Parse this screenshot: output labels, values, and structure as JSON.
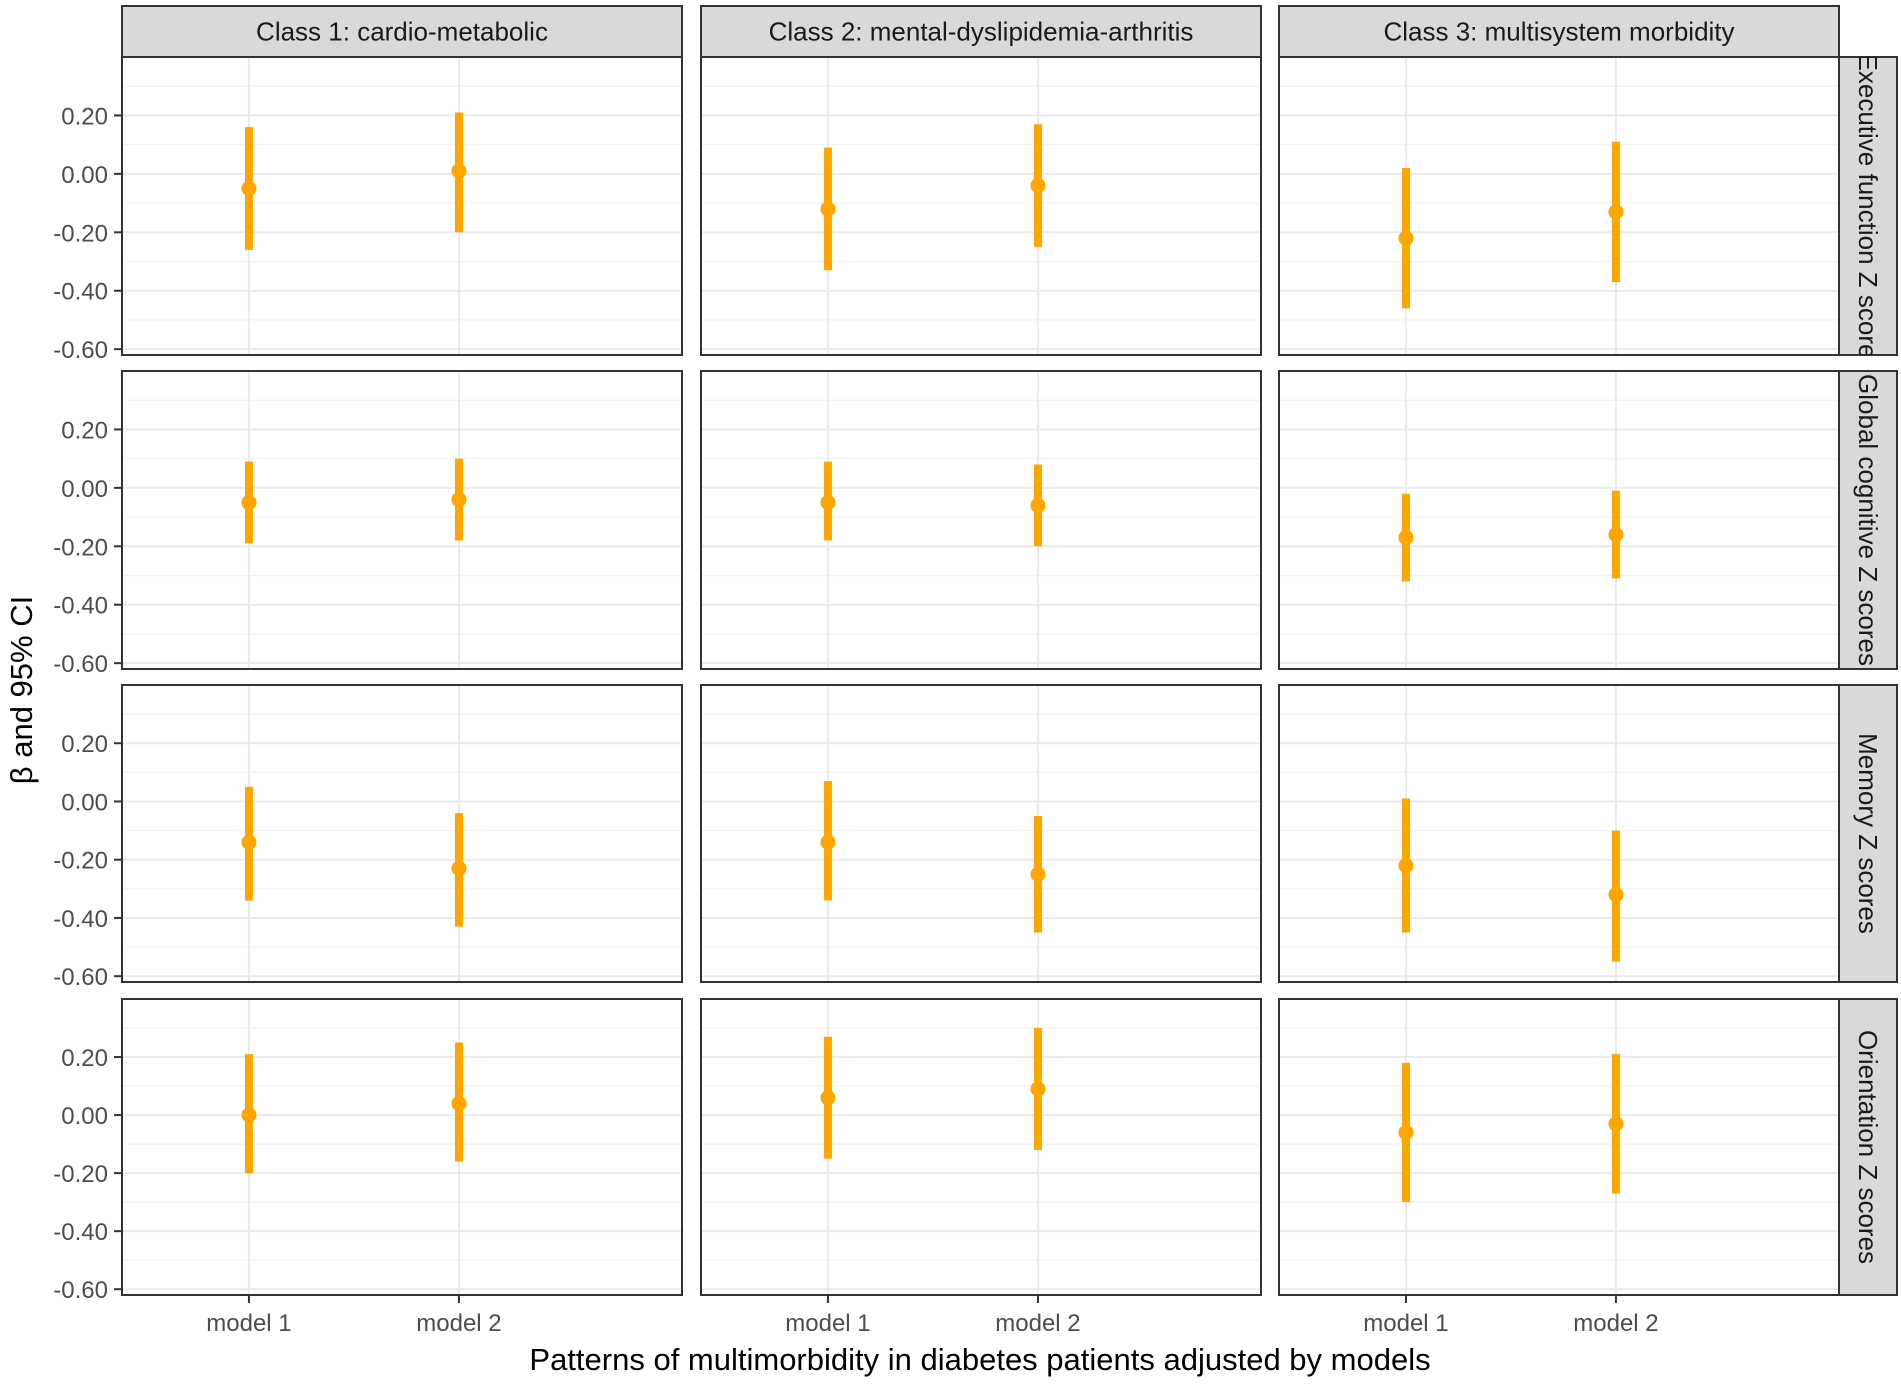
{
  "chart_data": {
    "type": "errorbar-facet",
    "xlabel": "Patterns of multimorbidity in diabetes patients adjusted by models",
    "ylabel": "β and 95% CI",
    "categories": [
      "model 1",
      "model 2"
    ],
    "y_ticks": [
      "0.20",
      "0.00",
      "-0.20",
      "-0.40",
      "-0.60"
    ],
    "y_tick_values": [
      0.2,
      0.0,
      -0.2,
      -0.4,
      -0.6
    ],
    "ylim": [
      -0.62,
      0.4
    ],
    "grid": true,
    "point_color": "#FFA500",
    "strip_fill": "#D9D9D9",
    "columns": [
      "Class 1: cardio-metabolic",
      "Class 2: mental-dyslipidemia-arthritis",
      "Class 3: multisystem morbidity"
    ],
    "rows": [
      "Executive function Z score",
      "Global cognitive Z scores",
      "Memory Z scores",
      "Orientation Z scores"
    ],
    "panels": [
      [
        [
          {
            "est": -0.05,
            "lo": -0.26,
            "hi": 0.16
          },
          {
            "est": 0.01,
            "lo": -0.2,
            "hi": 0.21
          }
        ],
        [
          {
            "est": -0.12,
            "lo": -0.33,
            "hi": 0.09
          },
          {
            "est": -0.04,
            "lo": -0.25,
            "hi": 0.17
          }
        ],
        [
          {
            "est": -0.22,
            "lo": -0.46,
            "hi": 0.02
          },
          {
            "est": -0.13,
            "lo": -0.37,
            "hi": 0.11
          }
        ]
      ],
      [
        [
          {
            "est": -0.05,
            "lo": -0.19,
            "hi": 0.09
          },
          {
            "est": -0.04,
            "lo": -0.18,
            "hi": 0.1
          }
        ],
        [
          {
            "est": -0.05,
            "lo": -0.18,
            "hi": 0.09
          },
          {
            "est": -0.06,
            "lo": -0.2,
            "hi": 0.08
          }
        ],
        [
          {
            "est": -0.17,
            "lo": -0.32,
            "hi": -0.02
          },
          {
            "est": -0.16,
            "lo": -0.31,
            "hi": -0.01
          }
        ]
      ],
      [
        [
          {
            "est": -0.14,
            "lo": -0.34,
            "hi": 0.05
          },
          {
            "est": -0.23,
            "lo": -0.43,
            "hi": -0.04
          }
        ],
        [
          {
            "est": -0.14,
            "lo": -0.34,
            "hi": 0.07
          },
          {
            "est": -0.25,
            "lo": -0.45,
            "hi": -0.05
          }
        ],
        [
          {
            "est": -0.22,
            "lo": -0.45,
            "hi": 0.01
          },
          {
            "est": -0.32,
            "lo": -0.55,
            "hi": -0.1
          }
        ]
      ],
      [
        [
          {
            "est": 0.0,
            "lo": -0.2,
            "hi": 0.21
          },
          {
            "est": 0.04,
            "lo": -0.16,
            "hi": 0.25
          }
        ],
        [
          {
            "est": 0.06,
            "lo": -0.15,
            "hi": 0.27
          },
          {
            "est": 0.09,
            "lo": -0.12,
            "hi": 0.3
          }
        ],
        [
          {
            "est": -0.06,
            "lo": -0.3,
            "hi": 0.18
          },
          {
            "est": -0.03,
            "lo": -0.27,
            "hi": 0.21
          }
        ]
      ]
    ]
  }
}
